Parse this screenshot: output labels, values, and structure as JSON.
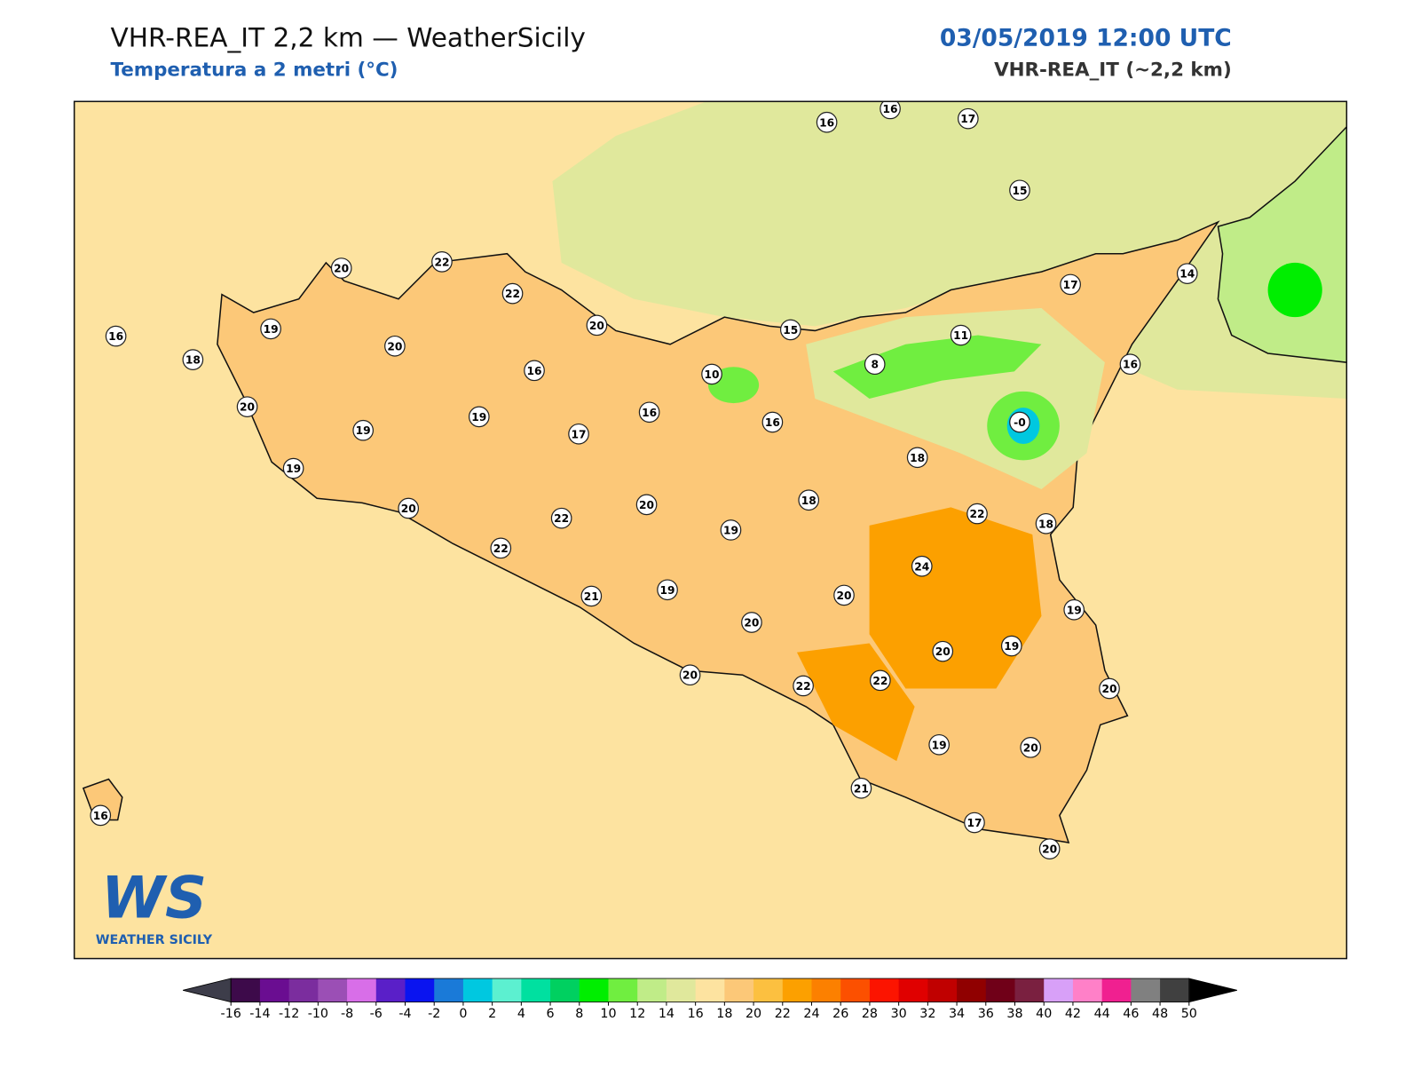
{
  "header": {
    "title": "VHR-REA_IT 2,2 km — WeatherSicily",
    "subtitle": "Temperatura a 2 metri (°C)",
    "date": "03/05/2019 12:00 UTC",
    "model": "VHR-REA_IT (~2,2 km)"
  },
  "map": {
    "stations": [
      16,
      16,
      17,
      15,
      20,
      22,
      22,
      19,
      16,
      18,
      20,
      20,
      15,
      11,
      8,
      10,
      16,
      16,
      14,
      17,
      20,
      19,
      19,
      16,
      17,
      16,
      {
        "value": 0,
        "label": "-0"
      },
      18,
      19,
      20,
      20,
      22,
      18,
      22,
      18,
      19,
      22,
      24,
      21,
      19,
      20,
      19,
      20,
      20,
      19,
      20,
      22,
      22,
      20,
      19,
      20,
      21,
      17,
      20,
      16
    ]
  },
  "colorbar": {
    "ticks": [
      -16,
      -14,
      -12,
      -10,
      -8,
      -6,
      -4,
      -2,
      0,
      2,
      4,
      6,
      8,
      10,
      12,
      14,
      16,
      18,
      20,
      22,
      24,
      26,
      28,
      30,
      32,
      34,
      36,
      38,
      40,
      42,
      44,
      46,
      48,
      50
    ],
    "colors": [
      "#3d0a4a",
      "#6a0d91",
      "#7b2d9e",
      "#9b4fb5",
      "#d86ee8",
      "#5a1fc8",
      "#0a14f0",
      "#1a7ad8",
      "#00c8e0",
      "#5cf0d0",
      "#00e0a0",
      "#00d060",
      "#00ee00",
      "#70ee40",
      "#c0ec88",
      "#e0e89c",
      "#fde3a0",
      "#fcc878",
      "#fcc040",
      "#fca000",
      "#fc8000",
      "#fc5000",
      "#fc1400",
      "#e00000",
      "#c00000",
      "#900000",
      "#700018",
      "#7a2040",
      "#d8a0f8",
      "#ff80c8",
      "#f02090",
      "#808080",
      "#404040"
    ],
    "under": "#3d3d4a",
    "over": "#000000"
  },
  "logo": {
    "mark": "WS",
    "text": "WEATHER SICILY"
  }
}
